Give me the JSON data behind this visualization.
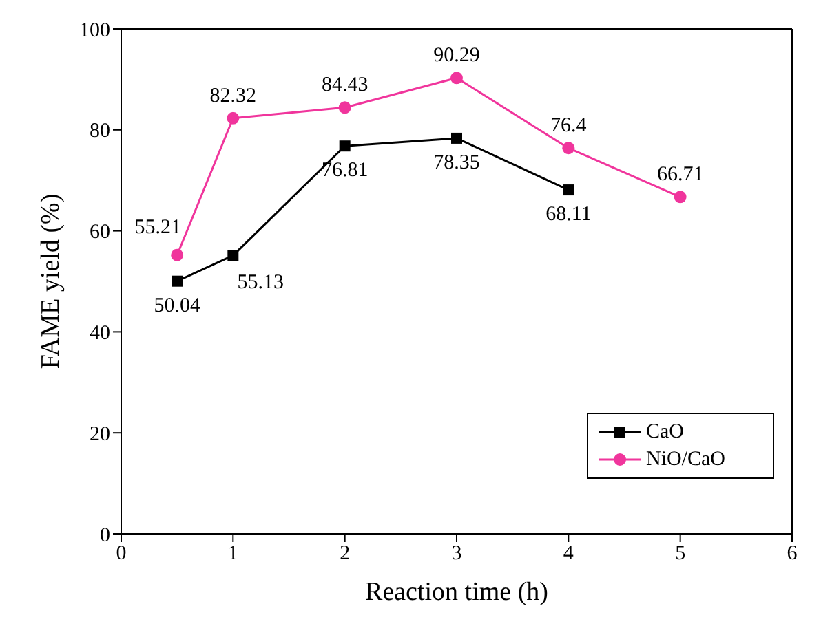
{
  "chart_data": {
    "type": "line",
    "xlabel": "Reaction time (h)",
    "ylabel": "FAME yield (%)",
    "xlim": [
      0,
      6
    ],
    "xticks": [
      0,
      1,
      2,
      3,
      4,
      5,
      6
    ],
    "ylim": [
      0,
      100
    ],
    "yticks": [
      0,
      20,
      40,
      60,
      80,
      100
    ],
    "legend": "bottom right",
    "data_labels": true,
    "line_style": "solid",
    "series": [
      {
        "name": "CaO",
        "color": "#000000",
        "marker": "square",
        "x": [
          0.5,
          1,
          2,
          3,
          4
        ],
        "values": [
          50.04,
          55.13,
          76.81,
          78.35,
          68.11
        ]
      },
      {
        "name": "NiO/CaO",
        "color": "#f0359c",
        "marker": "circle",
        "x": [
          0.5,
          1,
          2,
          3,
          4,
          5
        ],
        "values": [
          55.21,
          82.32,
          84.43,
          90.29,
          76.4,
          66.71
        ]
      }
    ]
  }
}
